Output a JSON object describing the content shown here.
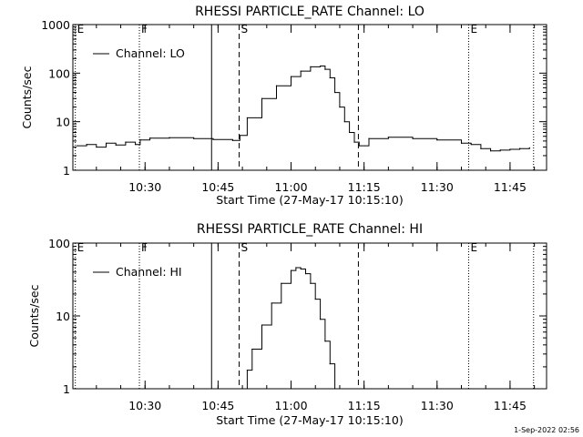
{
  "footer": "1-Sep-2022 02:56",
  "chart_data": [
    {
      "type": "line",
      "title": "RHESSI PARTICLE_RATE Channel: LO",
      "xlabel": "Start Time (27-May-17 10:15:10)",
      "ylabel": "Counts/sec",
      "y_scale": "log",
      "ylim": [
        1,
        1000
      ],
      "yticks": [
        "1",
        "10",
        "100",
        "1000"
      ],
      "xlim": [
        "10:15:10",
        "11:52:30"
      ],
      "xticks": [
        "10:30",
        "10:45",
        "11:00",
        "11:15",
        "11:30",
        "11:45"
      ],
      "legend": "Channel: LO",
      "legend_position": "top-left",
      "markers": [
        {
          "label": "E",
          "time": "10:15:40",
          "style": "dotted"
        },
        {
          "label": "F",
          "time": "10:28:50",
          "style": "dotted"
        },
        {
          "label": "",
          "time": "10:43:40",
          "style": "solid"
        },
        {
          "label": "S",
          "time": "10:49:20",
          "style": "dashed"
        },
        {
          "label": "",
          "time": "11:13:50",
          "style": "dashed"
        },
        {
          "label": "E",
          "time": "11:36:30",
          "style": "dotted"
        },
        {
          "label": "",
          "time": "11:49:50",
          "style": "dotted"
        }
      ],
      "series": [
        {
          "x": [
            "10:16",
            "10:18",
            "10:20",
            "10:22",
            "10:24",
            "10:26",
            "10:28",
            "10:29",
            "10:31",
            "10:35",
            "10:40",
            "10:44",
            "10:48",
            "10:49:30",
            "10:51",
            "10:54",
            "10:57",
            "11:00",
            "11:02",
            "11:04",
            "11:06",
            "11:07",
            "11:08",
            "11:09",
            "11:10",
            "11:11",
            "11:12",
            "11:13",
            "11:14",
            "11:16",
            "11:20",
            "11:25",
            "11:30",
            "11:35",
            "11:37",
            "11:39",
            "11:41",
            "11:43",
            "11:45",
            "11:47",
            "11:49"
          ],
          "y": [
            3.2,
            3.4,
            3.0,
            3.6,
            3.3,
            3.8,
            3.4,
            4.2,
            4.6,
            4.7,
            4.5,
            4.3,
            4.1,
            5.2,
            12,
            30,
            55,
            85,
            110,
            135,
            140,
            120,
            80,
            40,
            20,
            10,
            6,
            3.8,
            3.2,
            4.5,
            4.8,
            4.5,
            4.2,
            3.6,
            3.4,
            2.8,
            2.5,
            2.6,
            2.7,
            2.8,
            2.9
          ]
        }
      ]
    },
    {
      "type": "line",
      "title": "RHESSI PARTICLE_RATE Channel: HI",
      "xlabel": "Start Time (27-May-17 10:15:10)",
      "ylabel": "Counts/sec",
      "y_scale": "log",
      "ylim": [
        1,
        100
      ],
      "yticks": [
        "1",
        "10",
        "100"
      ],
      "xlim": [
        "10:15:10",
        "11:52:30"
      ],
      "xticks": [
        "10:30",
        "10:45",
        "11:00",
        "11:15",
        "11:30",
        "11:45"
      ],
      "legend": "Channel: HI",
      "legend_position": "top-left",
      "markers": [
        {
          "label": "E",
          "time": "10:15:40",
          "style": "dotted"
        },
        {
          "label": "F",
          "time": "10:28:50",
          "style": "dotted"
        },
        {
          "label": "",
          "time": "10:43:40",
          "style": "solid"
        },
        {
          "label": "S",
          "time": "10:49:20",
          "style": "dashed"
        },
        {
          "label": "",
          "time": "11:13:50",
          "style": "dashed"
        },
        {
          "label": "E",
          "time": "11:36:30",
          "style": "dotted"
        },
        {
          "label": "",
          "time": "11:49:50",
          "style": "dotted"
        }
      ],
      "series": [
        {
          "x": [
            "10:50:00",
            "10:51:00",
            "10:52:00",
            "10:54:00",
            "10:56:00",
            "10:58:00",
            "11:00:00",
            "11:01:00",
            "11:02:00",
            "11:03:00",
            "11:04:00",
            "11:05:00",
            "11:06:00",
            "11:07:00",
            "11:08:00",
            "11:09:00"
          ],
          "y": [
            1.0,
            1.8,
            3.5,
            7.5,
            15,
            28,
            42,
            46,
            44,
            38,
            28,
            17,
            9,
            4.5,
            2.2,
            1.0
          ]
        }
      ]
    }
  ]
}
